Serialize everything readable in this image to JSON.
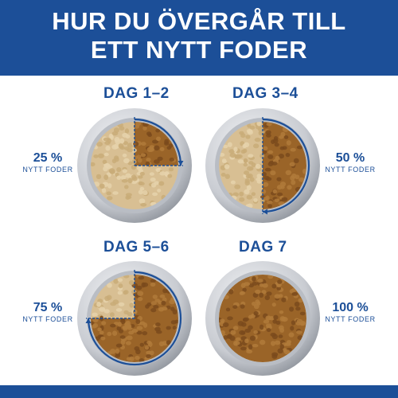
{
  "title": {
    "line1": "HUR DU ÖVERGÅR TILL",
    "line2": "ETT NYTT FODER"
  },
  "colors": {
    "brand_blue": "#1c4f98",
    "new_food": "#9a6428",
    "old_food": "#d8bf93"
  },
  "stages": [
    {
      "day": "DAG 1–2",
      "percent": "25 %",
      "label": "NYTT FODER",
      "new_fraction": 0.25
    },
    {
      "day": "DAG 3–4",
      "percent": "50 %",
      "label": "NYTT FODER",
      "new_fraction": 0.5
    },
    {
      "day": "DAG 5–6",
      "percent": "75 %",
      "label": "NYTT FODER",
      "new_fraction": 0.75
    },
    {
      "day": "DAG 7",
      "percent": "100 %",
      "label": "NYTT FODER",
      "new_fraction": 1.0
    }
  ]
}
